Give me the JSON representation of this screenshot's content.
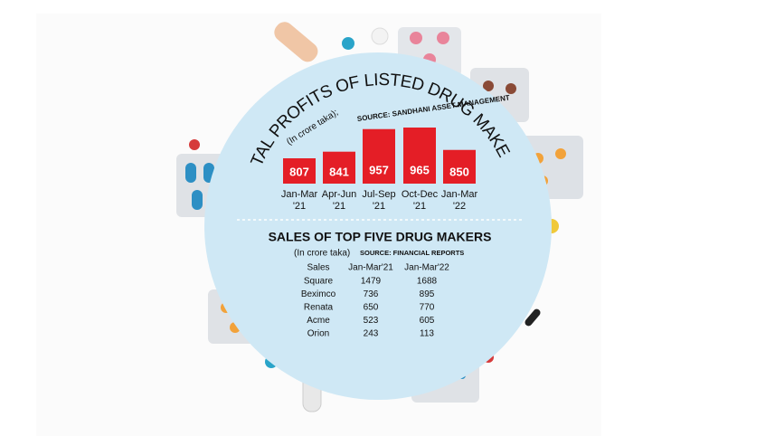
{
  "chart_data": {
    "type": "bar",
    "title": "TOTAL PROFITS OF LISTED DRUG MAKERS",
    "subtitle": "(In crore taka);",
    "source": "SOURCE: SANDHANI ASSET MANAGEMENT",
    "categories": [
      "Jan-Mar\n'21",
      "Apr-Jun\n'21",
      "Jul-Sep\n'21",
      "Oct-Dec\n'21",
      "Jan-Mar\n'22"
    ],
    "values": [
      807,
      841,
      957,
      965,
      850
    ],
    "color": "#e41e26"
  },
  "table": {
    "title": "SALES OF TOP FIVE DRUG MAKERS",
    "unit": "(In crore taka)",
    "source": "SOURCE: FINANCIAL REPORTS",
    "header": [
      "Sales",
      "Jan-Mar'21",
      "Jan-Mar'22"
    ],
    "rows": [
      [
        "Square",
        "1479",
        "1688"
      ],
      [
        "Beximco",
        "736",
        "895"
      ],
      [
        "Renata",
        "650",
        "770"
      ],
      [
        "Acme",
        "523",
        "605"
      ],
      [
        "Orion",
        "243",
        "113"
      ]
    ]
  }
}
